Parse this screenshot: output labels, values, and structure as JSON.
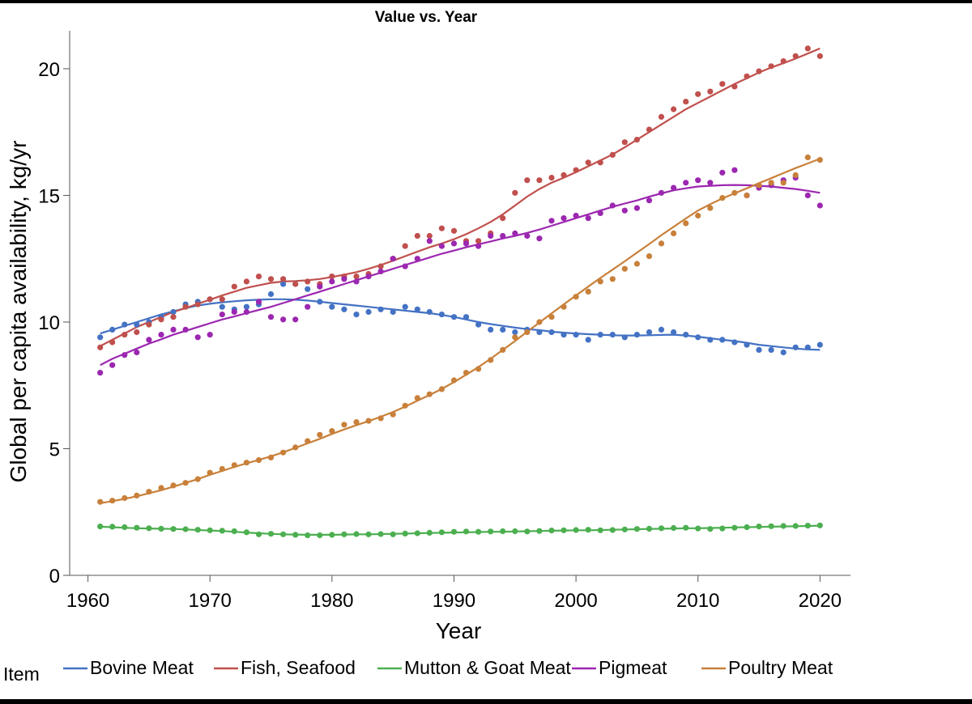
{
  "chart_data": {
    "type": "scatter",
    "title": "Value vs. Year",
    "xlabel": "Year",
    "ylabel": "Global per capita availability, kg/yr",
    "xlim": [
      1958.5,
      2022.5
    ],
    "ylim": [
      0,
      21.5
    ],
    "x_ticks": [
      "1960",
      "1970",
      "1980",
      "1990",
      "2000",
      "2010",
      "2020"
    ],
    "y_ticks": [
      "0",
      "5",
      "10",
      "15",
      "20"
    ],
    "legend_title": "Item",
    "legend_position": "bottom",
    "grid": false,
    "fit_lines": true,
    "x": [
      1961,
      1962,
      1963,
      1964,
      1965,
      1966,
      1967,
      1968,
      1969,
      1970,
      1971,
      1972,
      1973,
      1974,
      1975,
      1976,
      1977,
      1978,
      1979,
      1980,
      1981,
      1982,
      1983,
      1984,
      1985,
      1986,
      1987,
      1988,
      1989,
      1990,
      1991,
      1992,
      1993,
      1994,
      1995,
      1996,
      1997,
      1998,
      1999,
      2000,
      2001,
      2002,
      2003,
      2004,
      2005,
      2006,
      2007,
      2008,
      2009,
      2010,
      2011,
      2012,
      2013,
      2014,
      2015,
      2016,
      2017,
      2018,
      2019,
      2020
    ],
    "series": [
      {
        "name": "Bovine Meat",
        "color": "#4472c4",
        "values": [
          9.4,
          9.7,
          9.9,
          9.9,
          10.0,
          10.2,
          10.4,
          10.7,
          10.8,
          10.9,
          10.6,
          10.5,
          10.6,
          10.7,
          11.1,
          11.5,
          11.5,
          11.3,
          10.8,
          10.6,
          10.5,
          10.3,
          10.4,
          10.5,
          10.4,
          10.6,
          10.5,
          10.4,
          10.3,
          10.2,
          10.2,
          9.9,
          9.7,
          9.7,
          9.6,
          9.7,
          9.6,
          9.6,
          9.5,
          9.5,
          9.3,
          9.5,
          9.5,
          9.4,
          9.5,
          9.6,
          9.7,
          9.6,
          9.5,
          9.4,
          9.3,
          9.3,
          9.2,
          9.1,
          8.9,
          8.9,
          8.8,
          9.0,
          9.0,
          9.1
        ],
        "fit": [
          9.55,
          9.7,
          9.85,
          10.0,
          10.15,
          10.3,
          10.42,
          10.55,
          10.65,
          10.72,
          10.78,
          10.82,
          10.86,
          10.88,
          10.9,
          10.9,
          10.88,
          10.85,
          10.8,
          10.75,
          10.7,
          10.65,
          10.6,
          10.55,
          10.5,
          10.45,
          10.4,
          10.35,
          10.28,
          10.2,
          10.1,
          10.0,
          9.92,
          9.85,
          9.78,
          9.72,
          9.68,
          9.62,
          9.58,
          9.55,
          9.52,
          9.5,
          9.48,
          9.47,
          9.47,
          9.48,
          9.49,
          9.5,
          9.47,
          9.42,
          9.36,
          9.3,
          9.25,
          9.18,
          9.1,
          9.05,
          9.0,
          8.95,
          8.92,
          8.9
        ]
      },
      {
        "name": "Fish, Seafood",
        "color": "#c0504d",
        "values": [
          9.0,
          9.2,
          9.5,
          9.6,
          9.9,
          10.1,
          10.2,
          10.6,
          10.7,
          10.9,
          10.9,
          11.4,
          11.6,
          11.8,
          11.7,
          11.7,
          11.5,
          11.6,
          11.5,
          11.8,
          11.8,
          11.8,
          11.9,
          12.2,
          12.5,
          13.0,
          13.4,
          13.4,
          13.7,
          13.6,
          13.2,
          13.2,
          13.5,
          14.1,
          15.1,
          15.6,
          15.6,
          15.7,
          15.8,
          16.0,
          16.3,
          16.3,
          16.6,
          17.1,
          17.2,
          17.6,
          18.1,
          18.4,
          18.7,
          19.0,
          19.1,
          19.4,
          19.3,
          19.7,
          19.9,
          20.1,
          20.3,
          20.5,
          20.8,
          20.5
        ],
        "fit": [
          9.05,
          9.3,
          9.55,
          9.8,
          10.0,
          10.2,
          10.4,
          10.55,
          10.72,
          10.88,
          11.05,
          11.2,
          11.35,
          11.45,
          11.55,
          11.6,
          11.62,
          11.65,
          11.7,
          11.78,
          11.87,
          11.97,
          12.1,
          12.25,
          12.42,
          12.6,
          12.78,
          12.95,
          13.1,
          13.27,
          13.47,
          13.7,
          13.95,
          14.25,
          14.6,
          14.95,
          15.25,
          15.5,
          15.7,
          15.92,
          16.15,
          16.38,
          16.62,
          16.9,
          17.2,
          17.5,
          17.8,
          18.1,
          18.4,
          18.65,
          18.9,
          19.15,
          19.4,
          19.62,
          19.85,
          20.05,
          20.22,
          20.4,
          20.6,
          20.8
        ]
      },
      {
        "name": "Mutton & Goat Meat",
        "color": "#4caf50",
        "values": [
          1.93,
          1.92,
          1.9,
          1.88,
          1.86,
          1.84,
          1.83,
          1.82,
          1.8,
          1.78,
          1.76,
          1.74,
          1.7,
          1.62,
          1.64,
          1.62,
          1.6,
          1.58,
          1.58,
          1.6,
          1.62,
          1.63,
          1.62,
          1.63,
          1.62,
          1.65,
          1.66,
          1.68,
          1.7,
          1.72,
          1.73,
          1.72,
          1.73,
          1.74,
          1.74,
          1.73,
          1.75,
          1.77,
          1.78,
          1.79,
          1.8,
          1.78,
          1.79,
          1.81,
          1.83,
          1.84,
          1.86,
          1.87,
          1.88,
          1.85,
          1.83,
          1.85,
          1.88,
          1.9,
          1.93,
          1.94,
          1.95,
          1.95,
          1.96,
          1.97
        ],
        "fit": [
          1.92,
          1.9,
          1.88,
          1.86,
          1.85,
          1.84,
          1.83,
          1.81,
          1.79,
          1.77,
          1.75,
          1.72,
          1.69,
          1.66,
          1.64,
          1.62,
          1.61,
          1.6,
          1.6,
          1.6,
          1.61,
          1.62,
          1.62,
          1.63,
          1.64,
          1.65,
          1.66,
          1.67,
          1.68,
          1.69,
          1.7,
          1.71,
          1.72,
          1.72,
          1.73,
          1.74,
          1.75,
          1.76,
          1.77,
          1.78,
          1.78,
          1.79,
          1.8,
          1.81,
          1.82,
          1.83,
          1.84,
          1.85,
          1.86,
          1.86,
          1.87,
          1.88,
          1.89,
          1.9,
          1.91,
          1.92,
          1.93,
          1.94,
          1.95,
          1.96
        ]
      },
      {
        "name": "Pigmeat",
        "color": "#9c27b0",
        "values": [
          8.0,
          8.3,
          8.7,
          8.8,
          9.3,
          9.5,
          9.7,
          9.7,
          9.4,
          9.5,
          10.3,
          10.4,
          10.4,
          10.8,
          10.2,
          10.1,
          10.1,
          10.6,
          11.4,
          11.6,
          11.7,
          11.6,
          11.8,
          12.0,
          12.5,
          12.2,
          12.5,
          13.2,
          13.0,
          13.1,
          13.1,
          13.0,
          13.4,
          13.4,
          13.5,
          13.4,
          13.3,
          14.0,
          14.1,
          14.2,
          14.1,
          14.3,
          14.6,
          14.4,
          14.5,
          14.8,
          15.1,
          15.3,
          15.5,
          15.6,
          15.5,
          15.9,
          16.0,
          15.0,
          15.3,
          15.4,
          15.6,
          15.7,
          15.0,
          14.6
        ],
        "fit": [
          8.3,
          8.55,
          8.75,
          8.95,
          9.15,
          9.32,
          9.5,
          9.65,
          9.8,
          9.95,
          10.1,
          10.22,
          10.35,
          10.48,
          10.6,
          10.75,
          10.9,
          11.05,
          11.2,
          11.35,
          11.5,
          11.65,
          11.8,
          11.95,
          12.1,
          12.25,
          12.4,
          12.55,
          12.7,
          12.82,
          12.95,
          13.07,
          13.18,
          13.3,
          13.4,
          13.52,
          13.65,
          13.8,
          13.95,
          14.1,
          14.25,
          14.4,
          14.55,
          14.68,
          14.8,
          14.95,
          15.08,
          15.2,
          15.28,
          15.35,
          15.38,
          15.4,
          15.41,
          15.4,
          15.38,
          15.35,
          15.3,
          15.25,
          15.18,
          15.1
        ]
      },
      {
        "name": "Poultry Meat",
        "color": "#c8803a",
        "values": [
          2.9,
          2.95,
          3.05,
          3.15,
          3.3,
          3.45,
          3.55,
          3.65,
          3.8,
          4.05,
          4.2,
          4.35,
          4.45,
          4.55,
          4.65,
          4.85,
          5.05,
          5.3,
          5.55,
          5.7,
          5.95,
          6.05,
          6.1,
          6.2,
          6.35,
          6.7,
          7.0,
          7.15,
          7.35,
          7.7,
          8.0,
          8.15,
          8.5,
          8.9,
          9.4,
          9.6,
          10.0,
          10.2,
          10.6,
          11.0,
          11.2,
          11.6,
          11.7,
          12.1,
          12.3,
          12.6,
          13.1,
          13.5,
          13.9,
          14.2,
          14.5,
          14.9,
          15.1,
          15.0,
          15.4,
          15.5,
          15.5,
          15.8,
          16.5,
          16.4
        ],
        "fit": [
          2.85,
          2.93,
          3.02,
          3.12,
          3.24,
          3.36,
          3.5,
          3.65,
          3.8,
          3.97,
          4.12,
          4.28,
          4.42,
          4.56,
          4.7,
          4.86,
          5.03,
          5.21,
          5.39,
          5.58,
          5.76,
          5.93,
          6.09,
          6.26,
          6.45,
          6.66,
          6.89,
          7.12,
          7.36,
          7.63,
          7.92,
          8.22,
          8.55,
          8.9,
          9.25,
          9.62,
          9.98,
          10.34,
          10.7,
          11.05,
          11.4,
          11.74,
          12.07,
          12.4,
          12.74,
          13.08,
          13.43,
          13.76,
          14.09,
          14.4,
          14.65,
          14.88,
          15.08,
          15.28,
          15.48,
          15.68,
          15.88,
          16.08,
          16.26,
          16.45
        ]
      }
    ]
  }
}
